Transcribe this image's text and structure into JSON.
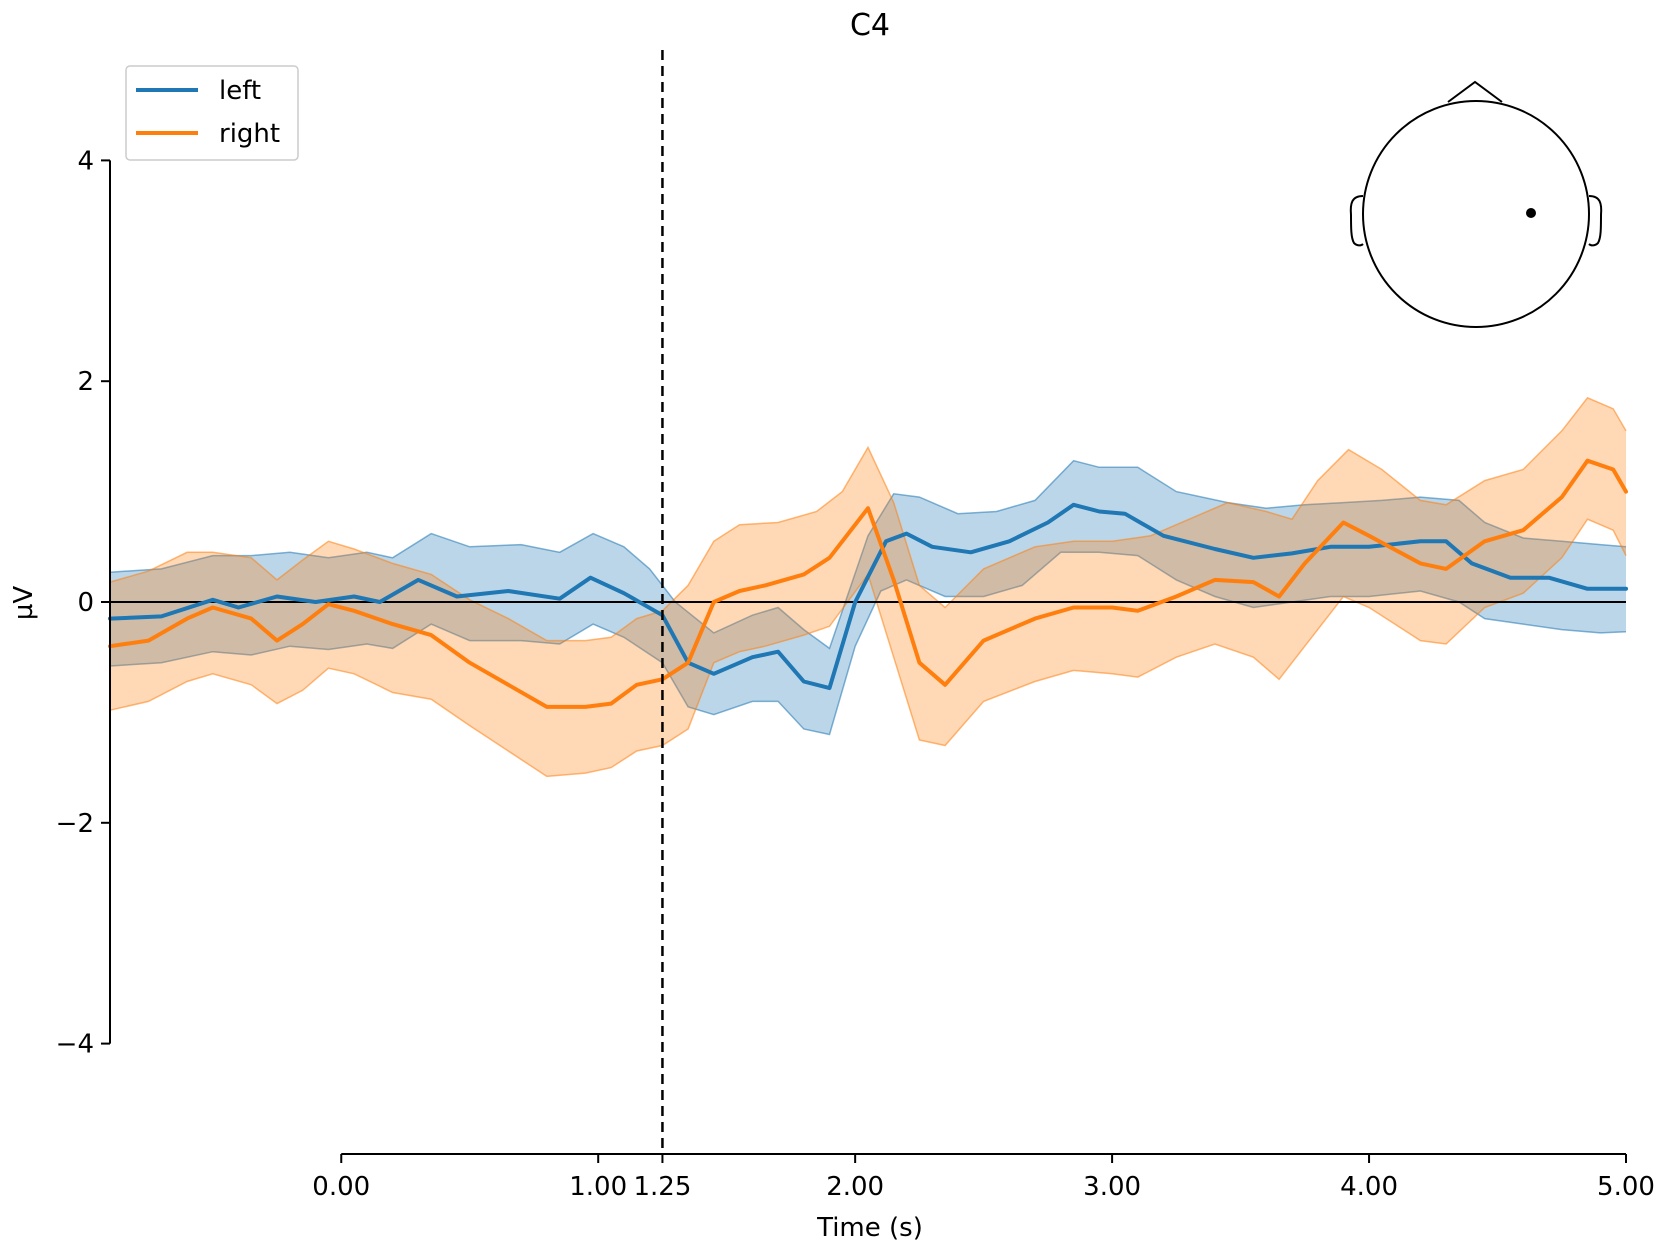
{
  "chart_data": {
    "type": "line",
    "title": "C4",
    "xlabel": "Time (s)",
    "ylabel": "µV",
    "xlim": [
      -0.9,
      5.0
    ],
    "ylim": [
      -5.0,
      5.0
    ],
    "x_ticks": [
      {
        "value": 0.0,
        "label": "0.00"
      },
      {
        "value": 1.0,
        "label": "1.00"
      },
      {
        "value": 1.25,
        "label": "1.25"
      },
      {
        "value": 2.0,
        "label": "2.00"
      },
      {
        "value": 3.0,
        "label": "3.00"
      },
      {
        "value": 4.0,
        "label": "4.00"
      },
      {
        "value": 5.0,
        "label": "5.00"
      }
    ],
    "y_ticks": [
      {
        "value": -4,
        "label": "−4"
      },
      {
        "value": -2,
        "label": "−2"
      },
      {
        "value": 0,
        "label": "0"
      },
      {
        "value": 2,
        "label": "2"
      },
      {
        "value": 4,
        "label": "4"
      }
    ],
    "vline_x": 1.25,
    "hline_y": 0,
    "grid": false,
    "legend": {
      "placement": "top-left"
    },
    "series": [
      {
        "name": "left",
        "color": "#1f77b4",
        "points": [
          [
            -0.9,
            -0.15
          ],
          [
            -0.7,
            -0.13
          ],
          [
            -0.5,
            0.02
          ],
          [
            -0.4,
            -0.05
          ],
          [
            -0.25,
            0.05
          ],
          [
            -0.1,
            0.0
          ],
          [
            0.05,
            0.05
          ],
          [
            0.15,
            0.0
          ],
          [
            0.3,
            0.2
          ],
          [
            0.45,
            0.05
          ],
          [
            0.65,
            0.1
          ],
          [
            0.85,
            0.03
          ],
          [
            0.97,
            0.22
          ],
          [
            1.1,
            0.08
          ],
          [
            1.25,
            -0.12
          ],
          [
            1.35,
            -0.55
          ],
          [
            1.45,
            -0.65
          ],
          [
            1.6,
            -0.5
          ],
          [
            1.7,
            -0.45
          ],
          [
            1.8,
            -0.72
          ],
          [
            1.9,
            -0.78
          ],
          [
            2.0,
            0.0
          ],
          [
            2.12,
            0.55
          ],
          [
            2.2,
            0.62
          ],
          [
            2.3,
            0.5
          ],
          [
            2.45,
            0.45
          ],
          [
            2.6,
            0.55
          ],
          [
            2.75,
            0.72
          ],
          [
            2.85,
            0.88
          ],
          [
            2.95,
            0.82
          ],
          [
            3.05,
            0.8
          ],
          [
            3.2,
            0.6
          ],
          [
            3.4,
            0.48
          ],
          [
            3.55,
            0.4
          ],
          [
            3.7,
            0.44
          ],
          [
            3.85,
            0.5
          ],
          [
            4.0,
            0.5
          ],
          [
            4.2,
            0.55
          ],
          [
            4.3,
            0.55
          ],
          [
            4.4,
            0.35
          ],
          [
            4.55,
            0.22
          ],
          [
            4.7,
            0.22
          ],
          [
            4.85,
            0.12
          ],
          [
            5.0,
            0.12
          ]
        ],
        "upper": [
          [
            -0.9,
            0.27
          ],
          [
            -0.7,
            0.3
          ],
          [
            -0.5,
            0.42
          ],
          [
            -0.35,
            0.42
          ],
          [
            -0.2,
            0.45
          ],
          [
            -0.05,
            0.4
          ],
          [
            0.1,
            0.45
          ],
          [
            0.2,
            0.4
          ],
          [
            0.35,
            0.62
          ],
          [
            0.5,
            0.5
          ],
          [
            0.7,
            0.52
          ],
          [
            0.85,
            0.45
          ],
          [
            0.98,
            0.62
          ],
          [
            1.1,
            0.5
          ],
          [
            1.2,
            0.3
          ],
          [
            1.3,
            0.0
          ],
          [
            1.45,
            -0.28
          ],
          [
            1.6,
            -0.12
          ],
          [
            1.7,
            -0.05
          ],
          [
            1.8,
            -0.25
          ],
          [
            1.9,
            -0.42
          ],
          [
            2.05,
            0.6
          ],
          [
            2.15,
            0.98
          ],
          [
            2.25,
            0.95
          ],
          [
            2.4,
            0.8
          ],
          [
            2.55,
            0.82
          ],
          [
            2.7,
            0.92
          ],
          [
            2.85,
            1.28
          ],
          [
            2.95,
            1.22
          ],
          [
            3.1,
            1.22
          ],
          [
            3.25,
            1.0
          ],
          [
            3.45,
            0.9
          ],
          [
            3.6,
            0.85
          ],
          [
            3.75,
            0.88
          ],
          [
            3.9,
            0.9
          ],
          [
            4.05,
            0.92
          ],
          [
            4.2,
            0.95
          ],
          [
            4.35,
            0.92
          ],
          [
            4.45,
            0.72
          ],
          [
            4.6,
            0.58
          ],
          [
            4.75,
            0.55
          ],
          [
            4.9,
            0.52
          ],
          [
            5.0,
            0.5
          ]
        ],
        "lower": [
          [
            -0.9,
            -0.58
          ],
          [
            -0.7,
            -0.55
          ],
          [
            -0.5,
            -0.45
          ],
          [
            -0.35,
            -0.48
          ],
          [
            -0.2,
            -0.4
          ],
          [
            -0.05,
            -0.43
          ],
          [
            0.1,
            -0.38
          ],
          [
            0.2,
            -0.42
          ],
          [
            0.35,
            -0.2
          ],
          [
            0.5,
            -0.35
          ],
          [
            0.7,
            -0.35
          ],
          [
            0.85,
            -0.38
          ],
          [
            0.98,
            -0.2
          ],
          [
            1.1,
            -0.32
          ],
          [
            1.25,
            -0.55
          ],
          [
            1.35,
            -0.95
          ],
          [
            1.45,
            -1.02
          ],
          [
            1.6,
            -0.9
          ],
          [
            1.7,
            -0.9
          ],
          [
            1.8,
            -1.15
          ],
          [
            1.9,
            -1.2
          ],
          [
            2.0,
            -0.4
          ],
          [
            2.1,
            0.1
          ],
          [
            2.2,
            0.2
          ],
          [
            2.35,
            0.05
          ],
          [
            2.5,
            0.05
          ],
          [
            2.65,
            0.15
          ],
          [
            2.8,
            0.45
          ],
          [
            2.95,
            0.45
          ],
          [
            3.1,
            0.42
          ],
          [
            3.25,
            0.2
          ],
          [
            3.4,
            0.05
          ],
          [
            3.55,
            -0.05
          ],
          [
            3.7,
            0.0
          ],
          [
            3.85,
            0.05
          ],
          [
            4.0,
            0.05
          ],
          [
            4.2,
            0.1
          ],
          [
            4.35,
            0.0
          ],
          [
            4.45,
            -0.15
          ],
          [
            4.6,
            -0.2
          ],
          [
            4.75,
            -0.25
          ],
          [
            4.9,
            -0.28
          ],
          [
            5.0,
            -0.27
          ]
        ]
      },
      {
        "name": "right",
        "color": "#ff7f0e",
        "points": [
          [
            -0.9,
            -0.4
          ],
          [
            -0.75,
            -0.35
          ],
          [
            -0.6,
            -0.15
          ],
          [
            -0.5,
            -0.05
          ],
          [
            -0.35,
            -0.15
          ],
          [
            -0.25,
            -0.35
          ],
          [
            -0.15,
            -0.2
          ],
          [
            -0.05,
            -0.02
          ],
          [
            0.05,
            -0.08
          ],
          [
            0.2,
            -0.2
          ],
          [
            0.35,
            -0.3
          ],
          [
            0.5,
            -0.55
          ],
          [
            0.65,
            -0.75
          ],
          [
            0.8,
            -0.95
          ],
          [
            0.95,
            -0.95
          ],
          [
            1.05,
            -0.92
          ],
          [
            1.15,
            -0.75
          ],
          [
            1.25,
            -0.7
          ],
          [
            1.35,
            -0.55
          ],
          [
            1.45,
            0.0
          ],
          [
            1.55,
            0.1
          ],
          [
            1.65,
            0.15
          ],
          [
            1.8,
            0.25
          ],
          [
            1.9,
            0.4
          ],
          [
            2.05,
            0.85
          ],
          [
            2.15,
            0.2
          ],
          [
            2.25,
            -0.55
          ],
          [
            2.35,
            -0.75
          ],
          [
            2.5,
            -0.35
          ],
          [
            2.7,
            -0.15
          ],
          [
            2.85,
            -0.05
          ],
          [
            3.0,
            -0.05
          ],
          [
            3.1,
            -0.08
          ],
          [
            3.25,
            0.05
          ],
          [
            3.4,
            0.2
          ],
          [
            3.55,
            0.18
          ],
          [
            3.65,
            0.05
          ],
          [
            3.75,
            0.35
          ],
          [
            3.9,
            0.72
          ],
          [
            4.0,
            0.6
          ],
          [
            4.2,
            0.35
          ],
          [
            4.3,
            0.3
          ],
          [
            4.45,
            0.55
          ],
          [
            4.6,
            0.65
          ],
          [
            4.75,
            0.95
          ],
          [
            4.85,
            1.28
          ],
          [
            4.95,
            1.2
          ],
          [
            5.0,
            1.0
          ]
        ],
        "upper": [
          [
            -0.9,
            0.18
          ],
          [
            -0.75,
            0.28
          ],
          [
            -0.6,
            0.45
          ],
          [
            -0.5,
            0.45
          ],
          [
            -0.35,
            0.4
          ],
          [
            -0.25,
            0.2
          ],
          [
            -0.15,
            0.38
          ],
          [
            -0.05,
            0.55
          ],
          [
            0.05,
            0.48
          ],
          [
            0.2,
            0.35
          ],
          [
            0.35,
            0.25
          ],
          [
            0.5,
            0.02
          ],
          [
            0.65,
            -0.15
          ],
          [
            0.8,
            -0.35
          ],
          [
            0.95,
            -0.35
          ],
          [
            1.05,
            -0.32
          ],
          [
            1.15,
            -0.15
          ],
          [
            1.25,
            -0.08
          ],
          [
            1.35,
            0.15
          ],
          [
            1.45,
            0.55
          ],
          [
            1.55,
            0.7
          ],
          [
            1.7,
            0.72
          ],
          [
            1.85,
            0.82
          ],
          [
            1.95,
            1.0
          ],
          [
            2.05,
            1.4
          ],
          [
            2.15,
            0.9
          ],
          [
            2.25,
            0.15
          ],
          [
            2.35,
            -0.05
          ],
          [
            2.5,
            0.3
          ],
          [
            2.7,
            0.5
          ],
          [
            2.85,
            0.55
          ],
          [
            3.0,
            0.55
          ],
          [
            3.15,
            0.6
          ],
          [
            3.3,
            0.75
          ],
          [
            3.45,
            0.9
          ],
          [
            3.6,
            0.82
          ],
          [
            3.7,
            0.75
          ],
          [
            3.8,
            1.1
          ],
          [
            3.92,
            1.38
          ],
          [
            4.05,
            1.2
          ],
          [
            4.2,
            0.92
          ],
          [
            4.3,
            0.88
          ],
          [
            4.45,
            1.1
          ],
          [
            4.6,
            1.2
          ],
          [
            4.75,
            1.55
          ],
          [
            4.85,
            1.85
          ],
          [
            4.95,
            1.75
          ],
          [
            5.0,
            1.55
          ]
        ],
        "lower": [
          [
            -0.9,
            -0.98
          ],
          [
            -0.75,
            -0.9
          ],
          [
            -0.6,
            -0.72
          ],
          [
            -0.5,
            -0.65
          ],
          [
            -0.35,
            -0.75
          ],
          [
            -0.25,
            -0.92
          ],
          [
            -0.15,
            -0.8
          ],
          [
            -0.05,
            -0.6
          ],
          [
            0.05,
            -0.65
          ],
          [
            0.2,
            -0.82
          ],
          [
            0.35,
            -0.88
          ],
          [
            0.5,
            -1.12
          ],
          [
            0.65,
            -1.35
          ],
          [
            0.8,
            -1.58
          ],
          [
            0.95,
            -1.55
          ],
          [
            1.05,
            -1.5
          ],
          [
            1.15,
            -1.35
          ],
          [
            1.25,
            -1.3
          ],
          [
            1.35,
            -1.15
          ],
          [
            1.45,
            -0.55
          ],
          [
            1.55,
            -0.45
          ],
          [
            1.65,
            -0.4
          ],
          [
            1.8,
            -0.3
          ],
          [
            1.9,
            -0.22
          ],
          [
            2.05,
            0.25
          ],
          [
            2.15,
            -0.5
          ],
          [
            2.25,
            -1.25
          ],
          [
            2.35,
            -1.3
          ],
          [
            2.5,
            -0.9
          ],
          [
            2.7,
            -0.72
          ],
          [
            2.85,
            -0.62
          ],
          [
            3.0,
            -0.65
          ],
          [
            3.1,
            -0.68
          ],
          [
            3.25,
            -0.5
          ],
          [
            3.4,
            -0.38
          ],
          [
            3.55,
            -0.5
          ],
          [
            3.65,
            -0.7
          ],
          [
            3.75,
            -0.4
          ],
          [
            3.9,
            0.05
          ],
          [
            4.0,
            -0.05
          ],
          [
            4.2,
            -0.35
          ],
          [
            4.3,
            -0.38
          ],
          [
            4.45,
            -0.05
          ],
          [
            4.6,
            0.08
          ],
          [
            4.75,
            0.4
          ],
          [
            4.85,
            0.75
          ],
          [
            4.95,
            0.65
          ],
          [
            5.0,
            0.42
          ]
        ]
      }
    ],
    "sensor_inset": {
      "channel": "C4",
      "marker": "dot"
    }
  }
}
